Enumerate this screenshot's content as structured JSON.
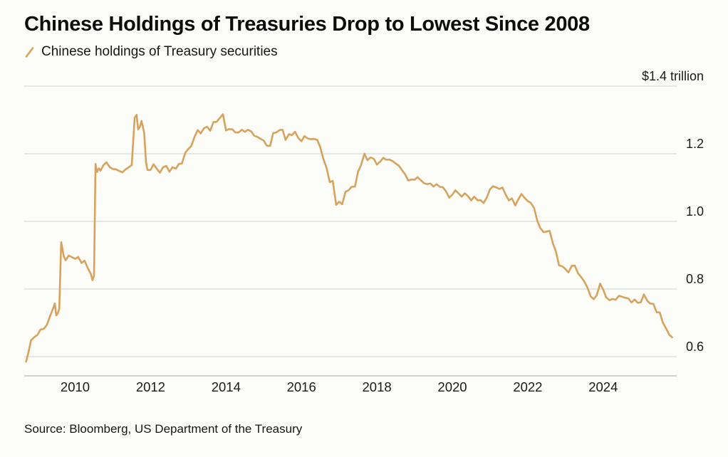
{
  "header": {
    "title": "Chinese Holdings of Treasuries Drop to Lowest Since 2008",
    "legend_label": "Chinese holdings of Treasury securities"
  },
  "footer": {
    "source": "Source: Bloomberg, US Department of the Treasury"
  },
  "colors": {
    "line": "#d7a35c",
    "grid": "#d9d9d4",
    "axis": "#c2c2bd",
    "text": "#1a1a1a",
    "background": "#fcfcf9"
  },
  "chart_data": {
    "type": "line",
    "title": "Chinese Holdings of Treasuries Drop to Lowest Since 2008",
    "xlabel": "",
    "ylabel": "$ trillion",
    "unit": "trillions of US dollars",
    "grid": true,
    "legend_position": "top-left",
    "y_axis_side": "right",
    "x_range": [
      2008.65,
      2025.95
    ],
    "y_range": [
      0.55,
      1.45
    ],
    "y_gridlines": [
      {
        "value": 1.4,
        "label": "$1.4 trillion"
      },
      {
        "value": 1.2,
        "label": "1.2"
      },
      {
        "value": 1.0,
        "label": "1.0"
      },
      {
        "value": 0.8,
        "label": "0.8"
      },
      {
        "value": 0.6,
        "label": "0.6"
      }
    ],
    "x_ticks": [
      {
        "value": 2010,
        "label": "2010"
      },
      {
        "value": 2012,
        "label": "2012"
      },
      {
        "value": 2014,
        "label": "2014"
      },
      {
        "value": 2016,
        "label": "2016"
      },
      {
        "value": 2018,
        "label": "2018"
      },
      {
        "value": 2020,
        "label": "2020"
      },
      {
        "value": 2022,
        "label": "2022"
      },
      {
        "value": 2024,
        "label": "2024"
      }
    ],
    "series": [
      {
        "name": "Chinese holdings of Treasury securities",
        "points": [
          [
            2008.7,
            0.585
          ],
          [
            2008.75,
            0.607
          ],
          [
            2008.79,
            0.627
          ],
          [
            2008.83,
            0.648
          ],
          [
            2008.92,
            0.658
          ],
          [
            2009.0,
            0.664
          ],
          [
            2009.08,
            0.68
          ],
          [
            2009.17,
            0.682
          ],
          [
            2009.25,
            0.694
          ],
          [
            2009.33,
            0.718
          ],
          [
            2009.42,
            0.744
          ],
          [
            2009.46,
            0.757
          ],
          [
            2009.5,
            0.722
          ],
          [
            2009.54,
            0.728
          ],
          [
            2009.58,
            0.741
          ],
          [
            2009.63,
            0.939
          ],
          [
            2009.7,
            0.896
          ],
          [
            2009.75,
            0.885
          ],
          [
            2009.83,
            0.899
          ],
          [
            2009.92,
            0.894
          ],
          [
            2010.0,
            0.889
          ],
          [
            2010.08,
            0.895
          ],
          [
            2010.17,
            0.877
          ],
          [
            2010.25,
            0.884
          ],
          [
            2010.33,
            0.863
          ],
          [
            2010.42,
            0.844
          ],
          [
            2010.46,
            0.826
          ],
          [
            2010.5,
            0.839
          ],
          [
            2010.54,
            1.17
          ],
          [
            2010.58,
            1.146
          ],
          [
            2010.63,
            1.157
          ],
          [
            2010.67,
            1.15
          ],
          [
            2010.75,
            1.166
          ],
          [
            2010.83,
            1.175
          ],
          [
            2010.92,
            1.16
          ],
          [
            2011.0,
            1.155
          ],
          [
            2011.08,
            1.154
          ],
          [
            2011.17,
            1.149
          ],
          [
            2011.25,
            1.145
          ],
          [
            2011.33,
            1.153
          ],
          [
            2011.42,
            1.16
          ],
          [
            2011.5,
            1.166
          ],
          [
            2011.58,
            1.307
          ],
          [
            2011.63,
            1.315
          ],
          [
            2011.67,
            1.272
          ],
          [
            2011.72,
            1.281
          ],
          [
            2011.76,
            1.297
          ],
          [
            2011.83,
            1.262
          ],
          [
            2011.88,
            1.174
          ],
          [
            2011.92,
            1.152
          ],
          [
            2012.0,
            1.152
          ],
          [
            2012.08,
            1.169
          ],
          [
            2012.17,
            1.155
          ],
          [
            2012.25,
            1.144
          ],
          [
            2012.33,
            1.16
          ],
          [
            2012.42,
            1.164
          ],
          [
            2012.5,
            1.147
          ],
          [
            2012.58,
            1.16
          ],
          [
            2012.67,
            1.156
          ],
          [
            2012.75,
            1.17
          ],
          [
            2012.83,
            1.171
          ],
          [
            2012.92,
            1.203
          ],
          [
            2013.0,
            1.214
          ],
          [
            2013.08,
            1.223
          ],
          [
            2013.17,
            1.251
          ],
          [
            2013.25,
            1.27
          ],
          [
            2013.33,
            1.26
          ],
          [
            2013.42,
            1.276
          ],
          [
            2013.5,
            1.28
          ],
          [
            2013.58,
            1.268
          ],
          [
            2013.67,
            1.294
          ],
          [
            2013.75,
            1.294
          ],
          [
            2013.83,
            1.305
          ],
          [
            2013.92,
            1.317
          ],
          [
            2014.0,
            1.269
          ],
          [
            2014.08,
            1.273
          ],
          [
            2014.17,
            1.272
          ],
          [
            2014.25,
            1.263
          ],
          [
            2014.33,
            1.263
          ],
          [
            2014.42,
            1.271
          ],
          [
            2014.5,
            1.265
          ],
          [
            2014.58,
            1.271
          ],
          [
            2014.67,
            1.266
          ],
          [
            2014.75,
            1.253
          ],
          [
            2014.83,
            1.25
          ],
          [
            2014.92,
            1.244
          ],
          [
            2015.0,
            1.239
          ],
          [
            2015.08,
            1.224
          ],
          [
            2015.17,
            1.223
          ],
          [
            2015.25,
            1.261
          ],
          [
            2015.33,
            1.263
          ],
          [
            2015.42,
            1.27
          ],
          [
            2015.5,
            1.271
          ],
          [
            2015.58,
            1.241
          ],
          [
            2015.67,
            1.258
          ],
          [
            2015.75,
            1.255
          ],
          [
            2015.83,
            1.265
          ],
          [
            2015.92,
            1.246
          ],
          [
            2016.0,
            1.237
          ],
          [
            2016.08,
            1.252
          ],
          [
            2016.17,
            1.245
          ],
          [
            2016.25,
            1.243
          ],
          [
            2016.33,
            1.244
          ],
          [
            2016.42,
            1.241
          ],
          [
            2016.5,
            1.219
          ],
          [
            2016.58,
            1.185
          ],
          [
            2016.67,
            1.157
          ],
          [
            2016.75,
            1.116
          ],
          [
            2016.83,
            1.12
          ],
          [
            2016.92,
            1.049
          ],
          [
            2017.0,
            1.058
          ],
          [
            2017.08,
            1.051
          ],
          [
            2017.17,
            1.088
          ],
          [
            2017.25,
            1.092
          ],
          [
            2017.33,
            1.102
          ],
          [
            2017.42,
            1.103
          ],
          [
            2017.5,
            1.147
          ],
          [
            2017.58,
            1.166
          ],
          [
            2017.67,
            1.2
          ],
          [
            2017.75,
            1.181
          ],
          [
            2017.83,
            1.189
          ],
          [
            2017.92,
            1.185
          ],
          [
            2018.0,
            1.168
          ],
          [
            2018.08,
            1.176
          ],
          [
            2018.17,
            1.188
          ],
          [
            2018.25,
            1.182
          ],
          [
            2018.33,
            1.183
          ],
          [
            2018.42,
            1.178
          ],
          [
            2018.5,
            1.171
          ],
          [
            2018.58,
            1.165
          ],
          [
            2018.67,
            1.151
          ],
          [
            2018.75,
            1.139
          ],
          [
            2018.83,
            1.121
          ],
          [
            2018.92,
            1.124
          ],
          [
            2019.0,
            1.123
          ],
          [
            2019.08,
            1.131
          ],
          [
            2019.17,
            1.121
          ],
          [
            2019.25,
            1.113
          ],
          [
            2019.33,
            1.11
          ],
          [
            2019.42,
            1.112
          ],
          [
            2019.5,
            1.103
          ],
          [
            2019.58,
            1.11
          ],
          [
            2019.67,
            1.102
          ],
          [
            2019.75,
            1.101
          ],
          [
            2019.83,
            1.089
          ],
          [
            2019.92,
            1.07
          ],
          [
            2020.0,
            1.079
          ],
          [
            2020.08,
            1.092
          ],
          [
            2020.17,
            1.082
          ],
          [
            2020.25,
            1.073
          ],
          [
            2020.33,
            1.083
          ],
          [
            2020.42,
            1.074
          ],
          [
            2020.5,
            1.062
          ],
          [
            2020.58,
            1.073
          ],
          [
            2020.67,
            1.062
          ],
          [
            2020.75,
            1.063
          ],
          [
            2020.83,
            1.054
          ],
          [
            2020.92,
            1.072
          ],
          [
            2021.0,
            1.095
          ],
          [
            2021.08,
            1.104
          ],
          [
            2021.17,
            1.1
          ],
          [
            2021.25,
            1.096
          ],
          [
            2021.33,
            1.1
          ],
          [
            2021.42,
            1.078
          ],
          [
            2021.5,
            1.062
          ],
          [
            2021.58,
            1.068
          ],
          [
            2021.67,
            1.047
          ],
          [
            2021.75,
            1.065
          ],
          [
            2021.83,
            1.081
          ],
          [
            2021.92,
            1.069
          ],
          [
            2022.0,
            1.06
          ],
          [
            2022.08,
            1.055
          ],
          [
            2022.17,
            1.039
          ],
          [
            2022.25,
            1.003
          ],
          [
            2022.33,
            0.981
          ],
          [
            2022.42,
            0.968
          ],
          [
            2022.5,
            0.97
          ],
          [
            2022.58,
            0.972
          ],
          [
            2022.67,
            0.934
          ],
          [
            2022.75,
            0.91
          ],
          [
            2022.83,
            0.87
          ],
          [
            2022.92,
            0.867
          ],
          [
            2023.0,
            0.859
          ],
          [
            2023.08,
            0.849
          ],
          [
            2023.17,
            0.869
          ],
          [
            2023.25,
            0.869
          ],
          [
            2023.33,
            0.847
          ],
          [
            2023.42,
            0.835
          ],
          [
            2023.5,
            0.822
          ],
          [
            2023.58,
            0.805
          ],
          [
            2023.67,
            0.778
          ],
          [
            2023.75,
            0.77
          ],
          [
            2023.83,
            0.782
          ],
          [
            2023.92,
            0.816
          ],
          [
            2024.0,
            0.798
          ],
          [
            2024.08,
            0.775
          ],
          [
            2024.17,
            0.767
          ],
          [
            2024.25,
            0.771
          ],
          [
            2024.33,
            0.768
          ],
          [
            2024.42,
            0.78
          ],
          [
            2024.5,
            0.777
          ],
          [
            2024.58,
            0.774
          ],
          [
            2024.67,
            0.772
          ],
          [
            2024.75,
            0.76
          ],
          [
            2024.83,
            0.769
          ],
          [
            2024.92,
            0.759
          ],
          [
            2025.0,
            0.761
          ],
          [
            2025.08,
            0.784
          ],
          [
            2025.17,
            0.765
          ],
          [
            2025.25,
            0.757
          ],
          [
            2025.33,
            0.756
          ],
          [
            2025.42,
            0.731
          ],
          [
            2025.5,
            0.731
          ],
          [
            2025.58,
            0.701
          ],
          [
            2025.67,
            0.683
          ],
          [
            2025.75,
            0.665
          ],
          [
            2025.83,
            0.657
          ]
        ]
      }
    ]
  }
}
